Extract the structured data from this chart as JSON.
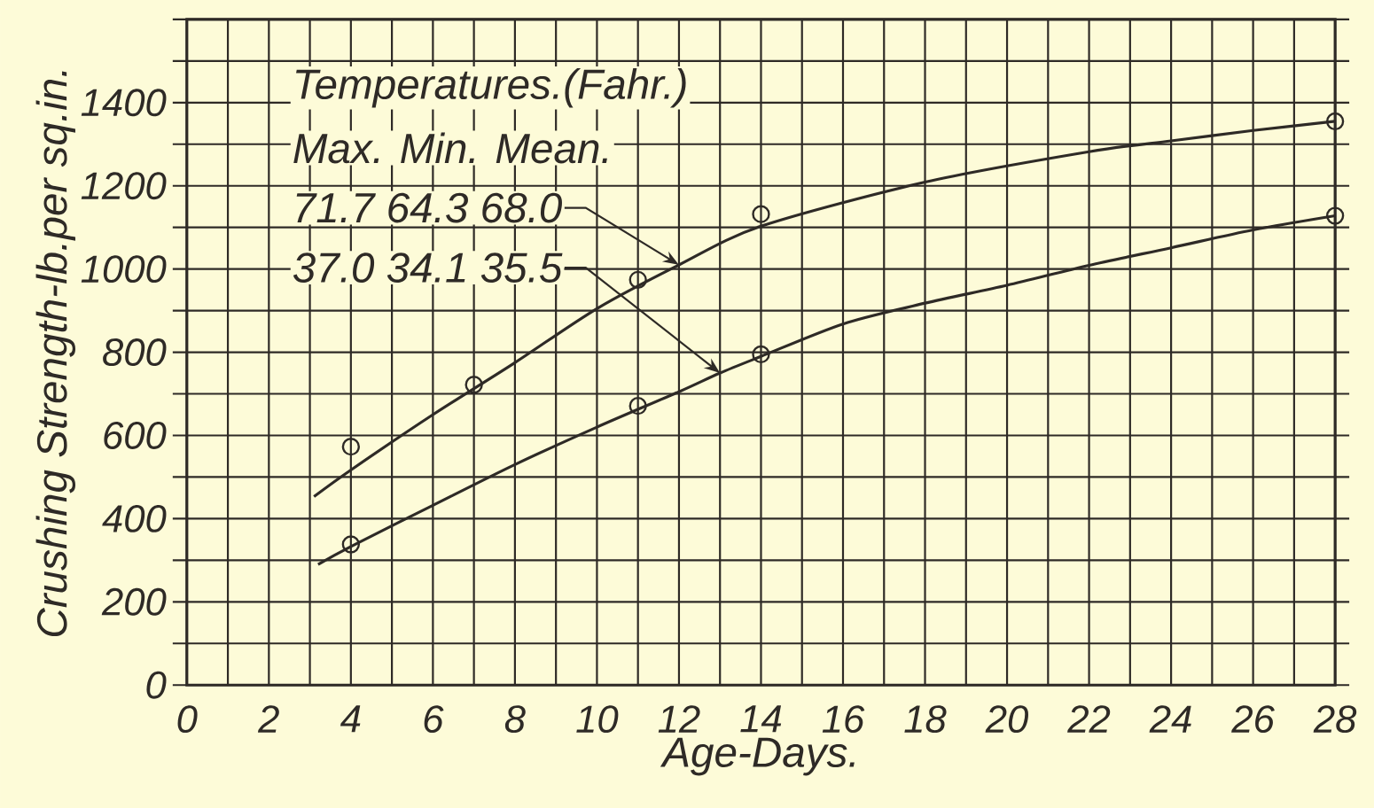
{
  "chart_data": {
    "type": "line",
    "xlabel": "Age-Days.",
    "ylabel": "Crushing Strength-lb.per sq.in.",
    "xlim": [
      0,
      28
    ],
    "ylim": [
      0,
      1600
    ],
    "xticks": [
      0,
      {
        "value": 1,
        "label": null
      },
      2,
      {
        "value": 3,
        "label": null
      },
      4,
      {
        "value": 5,
        "label": null
      },
      6,
      {
        "value": 7,
        "label": null
      },
      8,
      {
        "value": 9,
        "label": null
      },
      10,
      {
        "value": 11,
        "label": null
      },
      12,
      {
        "value": 13,
        "label": null
      },
      14,
      {
        "value": 15,
        "label": null
      },
      16,
      {
        "value": 17,
        "label": null
      },
      18,
      {
        "value": 19,
        "label": null
      },
      20,
      {
        "value": 21,
        "label": null
      },
      22,
      {
        "value": 23,
        "label": null
      },
      24,
      {
        "value": 25,
        "label": null
      },
      26,
      {
        "value": 27,
        "label": null
      },
      28
    ],
    "yticks": [
      0,
      {
        "value": 100,
        "label": null
      },
      200,
      {
        "value": 300,
        "label": null
      },
      400,
      {
        "value": 500,
        "label": null
      },
      600,
      {
        "value": 700,
        "label": null
      },
      800,
      {
        "value": 900,
        "label": null
      },
      1000,
      {
        "value": 1100,
        "label": null
      },
      1200,
      {
        "value": 1300,
        "label": null
      },
      1400,
      {
        "value": 1500,
        "label": null
      },
      {
        "value": 1600,
        "label": null
      }
    ],
    "grid": true,
    "marker": "circle",
    "series": [
      {
        "marker": "none",
        "color": "#2e2a26",
        "x": [
          3.1,
          4,
          6,
          8,
          10,
          12,
          14,
          18,
          22,
          24,
          26,
          28
        ],
        "values": [
          453,
          517,
          650,
          775,
          905,
          1010,
          1103,
          1209,
          1282,
          1308,
          1333,
          1355
        ]
      },
      {
        "marker": "none",
        "color": "#2e2a26",
        "x": [
          3.2,
          4,
          6,
          8,
          10,
          12,
          13,
          14,
          16,
          18,
          20,
          22,
          24,
          26,
          28
        ],
        "values": [
          290,
          333,
          432,
          530,
          620,
          705,
          750,
          790,
          868,
          918,
          961,
          1009,
          1051,
          1094,
          1128
        ]
      },
      {
        "type": "scatter",
        "color": "#2e2a26",
        "x": [
          4,
          7,
          11,
          14,
          28
        ],
        "values": [
          573,
          722,
          974,
          1132,
          1355
        ]
      },
      {
        "type": "scatter",
        "color": "#2e2a26",
        "x": [
          4,
          11,
          14,
          28
        ],
        "values": [
          338,
          671,
          795,
          1128
        ]
      }
    ],
    "annotations": [
      "Temperatures.(Fahr.)",
      "Max. Min. Mean.",
      {
        "text": "71.7 64.3 68.0",
        "x": 12,
        "y": 1010
      },
      {
        "text": "37.0 34.1 35.5",
        "x": 13,
        "y": 750
      }
    ]
  }
}
